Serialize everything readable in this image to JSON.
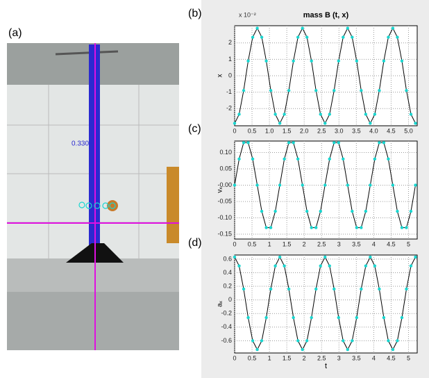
{
  "photo": {
    "panel_label": "(a)",
    "annotation": "0.330"
  },
  "chart_data": [
    {
      "type": "line",
      "panel_label": "(b)",
      "title": "mass B (t, x)",
      "axis_scale": "x 10⁻²",
      "ylabel": "x",
      "x": [
        0,
        0.13,
        0.26,
        0.39,
        0.52,
        0.65,
        0.78,
        0.91,
        1.04,
        1.17,
        1.3,
        1.43,
        1.56,
        1.69,
        1.82,
        1.95,
        2.08,
        2.21,
        2.34,
        2.47,
        2.6,
        2.73,
        2.86,
        2.99,
        3.12,
        3.25,
        3.38,
        3.51,
        3.64,
        3.77,
        3.9,
        4.03,
        4.16,
        4.29,
        4.42,
        4.55,
        4.68,
        4.81,
        4.94,
        5.07,
        5.2
      ],
      "values": [
        -2.9,
        -2.35,
        -0.9,
        0.9,
        2.35,
        2.9,
        2.35,
        0.9,
        -0.9,
        -2.35,
        -2.9,
        -2.35,
        -0.9,
        0.9,
        2.35,
        2.9,
        2.35,
        0.9,
        -0.9,
        -2.35,
        -2.9,
        -2.35,
        -0.9,
        0.9,
        2.35,
        2.9,
        2.35,
        0.9,
        -0.9,
        -2.35,
        -2.9,
        -2.35,
        -0.9,
        0.9,
        2.35,
        2.9,
        2.35,
        0.9,
        -0.9,
        -2.35,
        -2.9
      ],
      "line_color": "#000000",
      "point_color": "#19d6d0",
      "xlim": [
        0,
        5.25
      ],
      "ylim": [
        -3.05,
        3.05
      ],
      "xticks": [
        0,
        0.5,
        {
          "value": 1,
          "label": "1.0"
        },
        1.5,
        {
          "value": 2,
          "label": "2.0"
        },
        2.5,
        {
          "value": 3,
          "label": "3.0"
        },
        3.5,
        {
          "value": 4,
          "label": "4.0"
        },
        4.5,
        {
          "value": 5,
          "label": "5.0"
        }
      ],
      "yticks": [
        -2,
        -1,
        0,
        1,
        2
      ],
      "grid": true
    },
    {
      "type": "line",
      "panel_label": "(c)",
      "ylabel": "vₓ",
      "x": [
        0,
        0.13,
        0.26,
        0.39,
        0.52,
        0.65,
        0.78,
        0.91,
        1.04,
        1.17,
        1.3,
        1.43,
        1.56,
        1.69,
        1.82,
        1.95,
        2.08,
        2.21,
        2.34,
        2.47,
        2.6,
        2.73,
        2.86,
        2.99,
        3.12,
        3.25,
        3.38,
        3.51,
        3.64,
        3.77,
        3.9,
        4.03,
        4.16,
        4.29,
        4.42,
        4.55,
        4.68,
        4.81,
        4.94,
        5.07,
        5.2
      ],
      "values": [
        0,
        0.08,
        0.13,
        0.13,
        0.08,
        0,
        -0.08,
        -0.13,
        -0.13,
        -0.08,
        0,
        0.08,
        0.13,
        0.13,
        0.08,
        0,
        -0.08,
        -0.13,
        -0.13,
        -0.08,
        0,
        0.08,
        0.13,
        0.13,
        0.08,
        0,
        -0.08,
        -0.13,
        -0.13,
        -0.08,
        0,
        0.08,
        0.13,
        0.13,
        0.08,
        0,
        -0.08,
        -0.13,
        -0.13,
        -0.08,
        0
      ],
      "line_color": "#000000",
      "point_color": "#19d6d0",
      "xlim": [
        0,
        5.25
      ],
      "ylim": [
        -0.165,
        0.135
      ],
      "xticks": [
        0,
        0.5,
        1,
        1.5,
        2,
        2.5,
        3,
        3.5,
        4,
        4.5,
        5
      ],
      "yticks": [
        {
          "value": -0.15,
          "label": "-0.15"
        },
        {
          "value": -0.1,
          "label": "-0.10"
        },
        {
          "value": -0.05,
          "label": "-0.05"
        },
        {
          "value": 0,
          "label": "-0.00"
        },
        {
          "value": 0.05,
          "label": "0.05"
        },
        {
          "value": 0.1,
          "label": "0.10"
        }
      ],
      "grid": true
    },
    {
      "type": "line",
      "panel_label": "(d)",
      "ylabel": "aₓ",
      "xlabel": "t",
      "x": [
        0,
        0.13,
        0.26,
        0.39,
        0.52,
        0.65,
        0.78,
        0.91,
        1.04,
        1.17,
        1.3,
        1.43,
        1.56,
        1.69,
        1.82,
        1.95,
        2.08,
        2.21,
        2.34,
        2.47,
        2.6,
        2.73,
        2.86,
        2.99,
        3.12,
        3.25,
        3.38,
        3.51,
        3.64,
        3.77,
        3.9,
        4.03,
        4.16,
        4.29,
        4.42,
        4.55,
        4.68,
        4.81,
        4.94,
        5.07,
        5.2
      ],
      "values": [
        0.63,
        0.5,
        0.16,
        -0.26,
        -0.6,
        -0.73,
        -0.6,
        -0.26,
        0.16,
        0.5,
        0.63,
        0.5,
        0.16,
        -0.26,
        -0.6,
        -0.73,
        -0.6,
        -0.26,
        0.16,
        0.5,
        0.63,
        0.5,
        0.16,
        -0.26,
        -0.6,
        -0.73,
        -0.6,
        -0.26,
        0.16,
        0.5,
        0.63,
        0.5,
        0.16,
        -0.26,
        -0.6,
        -0.73,
        -0.6,
        -0.26,
        0.16,
        0.5,
        0.63
      ],
      "line_color": "#000000",
      "point_color": "#19d6d0",
      "xlim": [
        0,
        5.25
      ],
      "ylim": [
        -0.78,
        0.66
      ],
      "xticks": [
        0,
        0.5,
        1,
        1.5,
        2,
        2.5,
        3,
        3.5,
        4,
        4.5,
        5
      ],
      "yticks": [
        -0.6,
        -0.4,
        -0.2,
        0,
        0.2,
        0.4,
        0.6
      ],
      "grid": true
    }
  ]
}
